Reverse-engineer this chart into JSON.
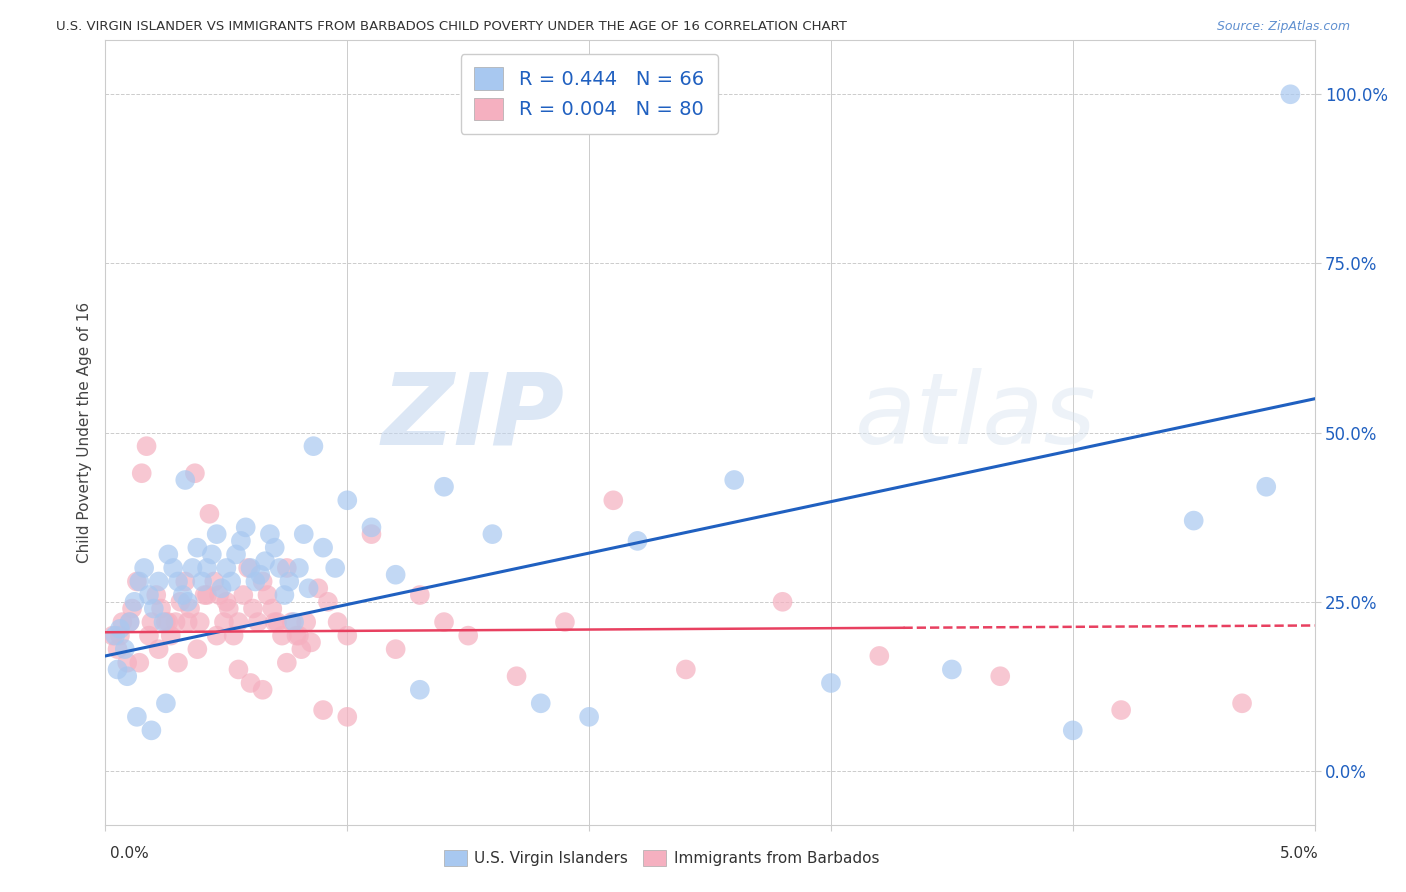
{
  "title": "U.S. VIRGIN ISLANDER VS IMMIGRANTS FROM BARBADOS CHILD POVERTY UNDER THE AGE OF 16 CORRELATION CHART",
  "source": "Source: ZipAtlas.com",
  "ylabel": "Child Poverty Under the Age of 16",
  "xlim": [
    0.0,
    5.0
  ],
  "ylim": [
    -8.0,
    108.0
  ],
  "blue_R": 0.444,
  "blue_N": 66,
  "pink_R": 0.004,
  "pink_N": 80,
  "blue_color": "#a8c8f0",
  "pink_color": "#f5b0c0",
  "blue_line_color": "#2060c0",
  "pink_line_color": "#e84060",
  "right_yticks": [
    0.0,
    25.0,
    50.0,
    75.0,
    100.0
  ],
  "watermark_zip": "ZIP",
  "watermark_atlas": "atlas",
  "legend_label_blue": "U.S. Virgin Islanders",
  "legend_label_pink": "Immigrants from Barbados",
  "blue_trend_x0": 0.0,
  "blue_trend_y0": 17.0,
  "blue_trend_x1": 5.0,
  "blue_trend_y1": 55.0,
  "pink_trend_x0": 0.0,
  "pink_trend_y0": 20.5,
  "pink_trend_x1": 5.0,
  "pink_trend_y1": 21.5,
  "blue_scatter_x": [
    0.04,
    0.06,
    0.08,
    0.1,
    0.12,
    0.14,
    0.16,
    0.18,
    0.2,
    0.22,
    0.24,
    0.26,
    0.28,
    0.3,
    0.32,
    0.34,
    0.36,
    0.38,
    0.4,
    0.42,
    0.44,
    0.46,
    0.48,
    0.5,
    0.52,
    0.54,
    0.56,
    0.58,
    0.6,
    0.62,
    0.64,
    0.66,
    0.68,
    0.7,
    0.72,
    0.74,
    0.76,
    0.78,
    0.8,
    0.82,
    0.84,
    0.86,
    0.9,
    0.95,
    1.0,
    1.1,
    1.2,
    1.3,
    1.4,
    1.6,
    1.8,
    2.0,
    2.2,
    2.6,
    3.0,
    3.5,
    4.0,
    4.5,
    4.8,
    4.9,
    0.05,
    0.09,
    0.13,
    0.19,
    0.25,
    0.33
  ],
  "blue_scatter_y": [
    20.0,
    21.0,
    18.0,
    22.0,
    25.0,
    28.0,
    30.0,
    26.0,
    24.0,
    28.0,
    22.0,
    32.0,
    30.0,
    28.0,
    26.0,
    25.0,
    30.0,
    33.0,
    28.0,
    30.0,
    32.0,
    35.0,
    27.0,
    30.0,
    28.0,
    32.0,
    34.0,
    36.0,
    30.0,
    28.0,
    29.0,
    31.0,
    35.0,
    33.0,
    30.0,
    26.0,
    28.0,
    22.0,
    30.0,
    35.0,
    27.0,
    48.0,
    33.0,
    30.0,
    40.0,
    36.0,
    29.0,
    12.0,
    42.0,
    35.0,
    10.0,
    8.0,
    34.0,
    43.0,
    13.0,
    15.0,
    6.0,
    37.0,
    42.0,
    100.0,
    15.0,
    14.0,
    8.0,
    6.0,
    10.0,
    43.0
  ],
  "pink_scatter_x": [
    0.03,
    0.05,
    0.07,
    0.09,
    0.11,
    0.13,
    0.15,
    0.17,
    0.19,
    0.21,
    0.23,
    0.25,
    0.27,
    0.29,
    0.31,
    0.33,
    0.35,
    0.37,
    0.39,
    0.41,
    0.43,
    0.45,
    0.47,
    0.49,
    0.51,
    0.53,
    0.55,
    0.57,
    0.59,
    0.61,
    0.63,
    0.65,
    0.67,
    0.69,
    0.71,
    0.73,
    0.75,
    0.77,
    0.79,
    0.81,
    0.83,
    0.85,
    0.88,
    0.92,
    0.96,
    1.0,
    1.1,
    1.2,
    1.3,
    1.4,
    1.5,
    1.7,
    1.9,
    2.1,
    2.4,
    2.8,
    3.2,
    3.7,
    4.2,
    4.7,
    0.06,
    0.1,
    0.14,
    0.18,
    0.22,
    0.26,
    0.3,
    0.34,
    0.38,
    0.42,
    0.46,
    0.5,
    0.55,
    0.6,
    0.65,
    0.7,
    0.75,
    0.8,
    0.9,
    1.0
  ],
  "pink_scatter_y": [
    20.0,
    18.0,
    22.0,
    16.0,
    24.0,
    28.0,
    44.0,
    48.0,
    22.0,
    26.0,
    24.0,
    22.0,
    20.0,
    22.0,
    25.0,
    28.0,
    24.0,
    44.0,
    22.0,
    26.0,
    38.0,
    28.0,
    26.0,
    22.0,
    24.0,
    20.0,
    22.0,
    26.0,
    30.0,
    24.0,
    22.0,
    28.0,
    26.0,
    24.0,
    22.0,
    20.0,
    30.0,
    22.0,
    20.0,
    18.0,
    22.0,
    19.0,
    27.0,
    25.0,
    22.0,
    20.0,
    35.0,
    18.0,
    26.0,
    22.0,
    20.0,
    14.0,
    22.0,
    40.0,
    15.0,
    25.0,
    17.0,
    14.0,
    9.0,
    10.0,
    20.0,
    22.0,
    16.0,
    20.0,
    18.0,
    22.0,
    16.0,
    22.0,
    18.0,
    26.0,
    20.0,
    25.0,
    15.0,
    13.0,
    12.0,
    22.0,
    16.0,
    20.0,
    9.0,
    8.0
  ]
}
